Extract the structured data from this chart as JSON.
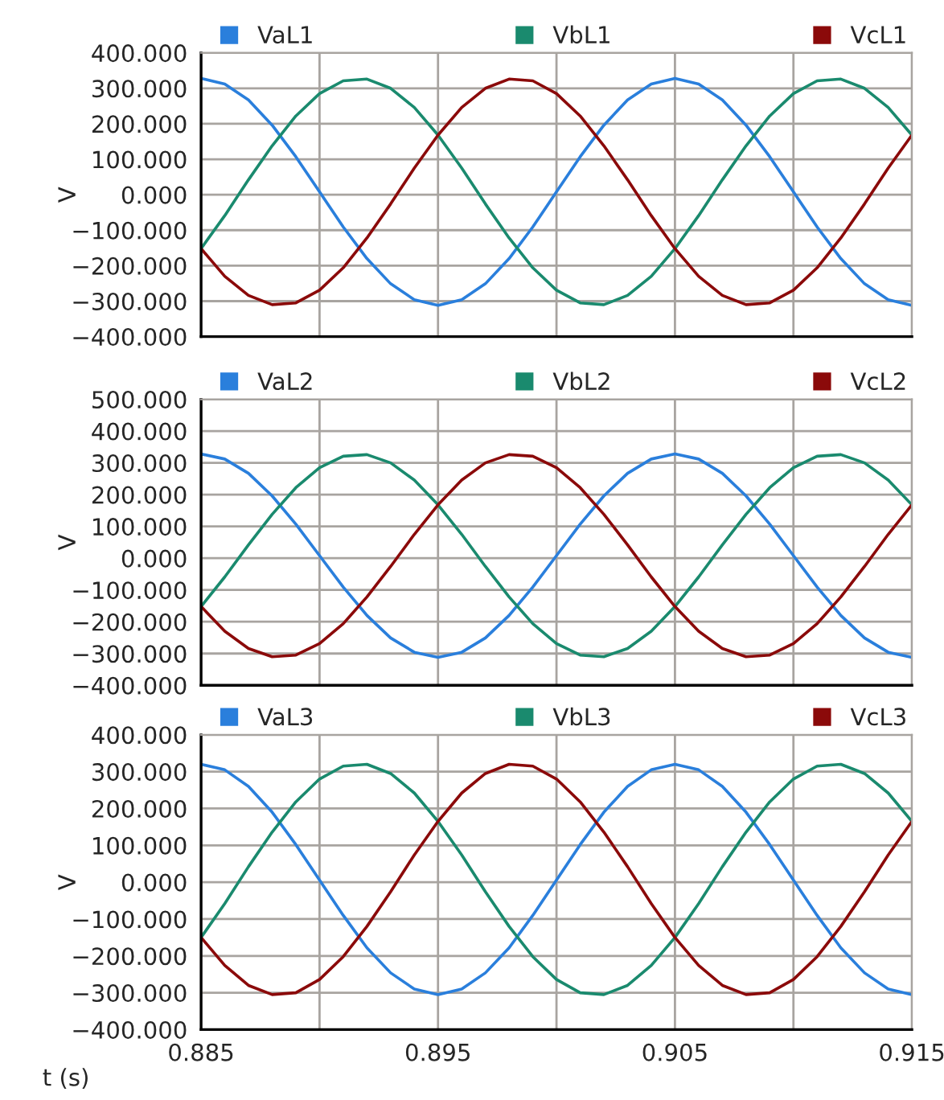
{
  "chart_data": [
    {
      "type": "line",
      "ylabel": "V",
      "legend": "top",
      "grid": true,
      "tick_labels": "y",
      "x": [
        0.885,
        0.886,
        0.887,
        0.888,
        0.889,
        0.89,
        0.891,
        0.892,
        0.893,
        0.894,
        0.895,
        0.896,
        0.897,
        0.898,
        0.899,
        0.9,
        0.901,
        0.902,
        0.903,
        0.904,
        0.905,
        0.906,
        0.907,
        0.908,
        0.909,
        0.91,
        0.911,
        0.912,
        0.913,
        0.914,
        0.915
      ],
      "xlim": [
        0.885,
        0.915
      ],
      "xticks": [
        {
          "value": 0.885,
          "label": null
        },
        {
          "value": 0.89,
          "label": null
        },
        {
          "value": 0.895,
          "label": null
        },
        {
          "value": 0.9,
          "label": null
        },
        {
          "value": 0.905,
          "label": null
        },
        {
          "value": 0.91,
          "label": null
        },
        {
          "value": 0.915,
          "label": null
        }
      ],
      "ylim": [
        -400,
        400
      ],
      "yticks": [
        {
          "value": -400,
          "label": "−400.000"
        },
        {
          "value": -300,
          "label": "−300.000"
        },
        {
          "value": -200,
          "label": "−200.000"
        },
        {
          "value": -100,
          "label": "−100.000"
        },
        {
          "value": 0,
          "label": "0.000"
        },
        {
          "value": 100,
          "label": "100.000"
        },
        {
          "value": 200,
          "label": "200.000"
        },
        {
          "value": 300,
          "label": "300.000"
        },
        {
          "value": 400,
          "label": "400.000"
        }
      ],
      "series": [
        {
          "name": "VaL1",
          "color": "#2a7fdc",
          "values": [
            328,
            312,
            267,
            196,
            107,
            8,
            -91,
            -180,
            -251,
            -296,
            -312,
            -296,
            -251,
            -180,
            -91,
            8,
            107,
            196,
            267,
            312,
            328,
            312,
            267,
            196,
            107,
            8,
            -91,
            -180,
            -251,
            -296,
            -312
          ]
        },
        {
          "name": "VbL1",
          "color": "#1a8a6e",
          "values": [
            -152,
            -59,
            42,
            138,
            222,
            285,
            321,
            326,
            300,
            246,
            168,
            75,
            -26,
            -122,
            -206,
            -269,
            -305,
            -310,
            -284,
            -230,
            -152,
            -59,
            42,
            138,
            222,
            285,
            321,
            326,
            300,
            246,
            168
          ]
        },
        {
          "name": "VcL1",
          "color": "#8b0a0a",
          "values": [
            -152,
            -230,
            -284,
            -310,
            -305,
            -269,
            -206,
            -122,
            -26,
            75,
            168,
            246,
            300,
            326,
            321,
            285,
            222,
            138,
            42,
            -59,
            -152,
            -230,
            -284,
            -310,
            -305,
            -269,
            -206,
            -122,
            -26,
            75,
            168
          ]
        }
      ]
    },
    {
      "type": "line",
      "ylabel": "V",
      "legend": "top",
      "grid": true,
      "tick_labels": "y",
      "x": [
        0.885,
        0.886,
        0.887,
        0.888,
        0.889,
        0.89,
        0.891,
        0.892,
        0.893,
        0.894,
        0.895,
        0.896,
        0.897,
        0.898,
        0.899,
        0.9,
        0.901,
        0.902,
        0.903,
        0.904,
        0.905,
        0.906,
        0.907,
        0.908,
        0.909,
        0.91,
        0.911,
        0.912,
        0.913,
        0.914,
        0.915
      ],
      "xlim": [
        0.885,
        0.915
      ],
      "xticks": [
        {
          "value": 0.885,
          "label": null
        },
        {
          "value": 0.89,
          "label": null
        },
        {
          "value": 0.895,
          "label": null
        },
        {
          "value": 0.9,
          "label": null
        },
        {
          "value": 0.905,
          "label": null
        },
        {
          "value": 0.91,
          "label": null
        },
        {
          "value": 0.915,
          "label": null
        }
      ],
      "ylim": [
        -400,
        500
      ],
      "yticks": [
        {
          "value": -400,
          "label": "−400.000"
        },
        {
          "value": -300,
          "label": "−300.000"
        },
        {
          "value": -200,
          "label": "−200.000"
        },
        {
          "value": -100,
          "label": "−100.000"
        },
        {
          "value": 0,
          "label": "0.000"
        },
        {
          "value": 100,
          "label": "100.000"
        },
        {
          "value": 200,
          "label": "200.000"
        },
        {
          "value": 300,
          "label": "300.000"
        },
        {
          "value": 400,
          "label": "400.000"
        },
        {
          "value": 500,
          "label": "500.000"
        }
      ],
      "series": [
        {
          "name": "VaL2",
          "color": "#2a7fdc",
          "values": [
            328,
            312,
            267,
            196,
            107,
            8,
            -91,
            -180,
            -251,
            -296,
            -312,
            -296,
            -251,
            -180,
            -91,
            8,
            107,
            196,
            267,
            312,
            328,
            312,
            267,
            196,
            107,
            8,
            -91,
            -180,
            -251,
            -296,
            -312
          ]
        },
        {
          "name": "VbL2",
          "color": "#1a8a6e",
          "values": [
            -152,
            -59,
            42,
            138,
            222,
            285,
            321,
            326,
            300,
            246,
            168,
            75,
            -26,
            -122,
            -206,
            -269,
            -305,
            -310,
            -284,
            -230,
            -152,
            -59,
            42,
            138,
            222,
            285,
            321,
            326,
            300,
            246,
            168
          ]
        },
        {
          "name": "VcL2",
          "color": "#8b0a0a",
          "values": [
            -152,
            -230,
            -284,
            -310,
            -305,
            -269,
            -206,
            -122,
            -26,
            75,
            168,
            246,
            300,
            326,
            321,
            285,
            222,
            138,
            42,
            -59,
            -152,
            -230,
            -284,
            -310,
            -305,
            -269,
            -206,
            -122,
            -26,
            75,
            168
          ]
        }
      ]
    },
    {
      "type": "line",
      "ylabel": "V",
      "xlabel": "t (s)",
      "legend": "top",
      "grid": true,
      "x": [
        0.885,
        0.886,
        0.887,
        0.888,
        0.889,
        0.89,
        0.891,
        0.892,
        0.893,
        0.894,
        0.895,
        0.896,
        0.897,
        0.898,
        0.899,
        0.9,
        0.901,
        0.902,
        0.903,
        0.904,
        0.905,
        0.906,
        0.907,
        0.908,
        0.909,
        0.91,
        0.911,
        0.912,
        0.913,
        0.914,
        0.915
      ],
      "xlim": [
        0.885,
        0.915
      ],
      "xticks": [
        {
          "value": 0.885,
          "label": "0.885"
        },
        {
          "value": 0.89,
          "label": null
        },
        {
          "value": 0.895,
          "label": "0.895"
        },
        {
          "value": 0.9,
          "label": null
        },
        {
          "value": 0.905,
          "label": "0.905"
        },
        {
          "value": 0.91,
          "label": null
        },
        {
          "value": 0.915,
          "label": "0.915"
        }
      ],
      "ylim": [
        -400,
        400
      ],
      "yticks": [
        {
          "value": -400,
          "label": "−400.000"
        },
        {
          "value": -300,
          "label": "−300.000"
        },
        {
          "value": -200,
          "label": "−200.000"
        },
        {
          "value": -100,
          "label": "−100.000"
        },
        {
          "value": 0,
          "label": "0.000"
        },
        {
          "value": 100,
          "label": "100.000"
        },
        {
          "value": 200,
          "label": "200.000"
        },
        {
          "value": 300,
          "label": "300.000"
        },
        {
          "value": 400,
          "label": "400.000"
        }
      ],
      "series": [
        {
          "name": "VaL3",
          "color": "#2a7fdc",
          "values": [
            320,
            305,
            260,
            190,
            102,
            6,
            -90,
            -178,
            -246,
            -290,
            -305,
            -290,
            -246,
            -178,
            -90,
            6,
            102,
            190,
            260,
            305,
            320,
            305,
            260,
            190,
            102,
            6,
            -90,
            -178,
            -246,
            -290,
            -305
          ]
        },
        {
          "name": "VbL3",
          "color": "#1a8a6e",
          "values": [
            -150,
            -58,
            42,
            136,
            218,
            280,
            315,
            320,
            295,
            242,
            165,
            74,
            -26,
            -120,
            -202,
            -264,
            -300,
            -305,
            -280,
            -226,
            -150,
            -58,
            42,
            136,
            218,
            280,
            315,
            320,
            295,
            242,
            165
          ]
        },
        {
          "name": "VcL3",
          "color": "#8b0a0a",
          "values": [
            -150,
            -226,
            -280,
            -305,
            -300,
            -264,
            -202,
            -120,
            -26,
            74,
            165,
            242,
            295,
            320,
            315,
            280,
            218,
            136,
            42,
            -58,
            -150,
            -226,
            -280,
            -305,
            -300,
            -264,
            -202,
            -120,
            -26,
            74,
            165
          ]
        }
      ]
    }
  ]
}
